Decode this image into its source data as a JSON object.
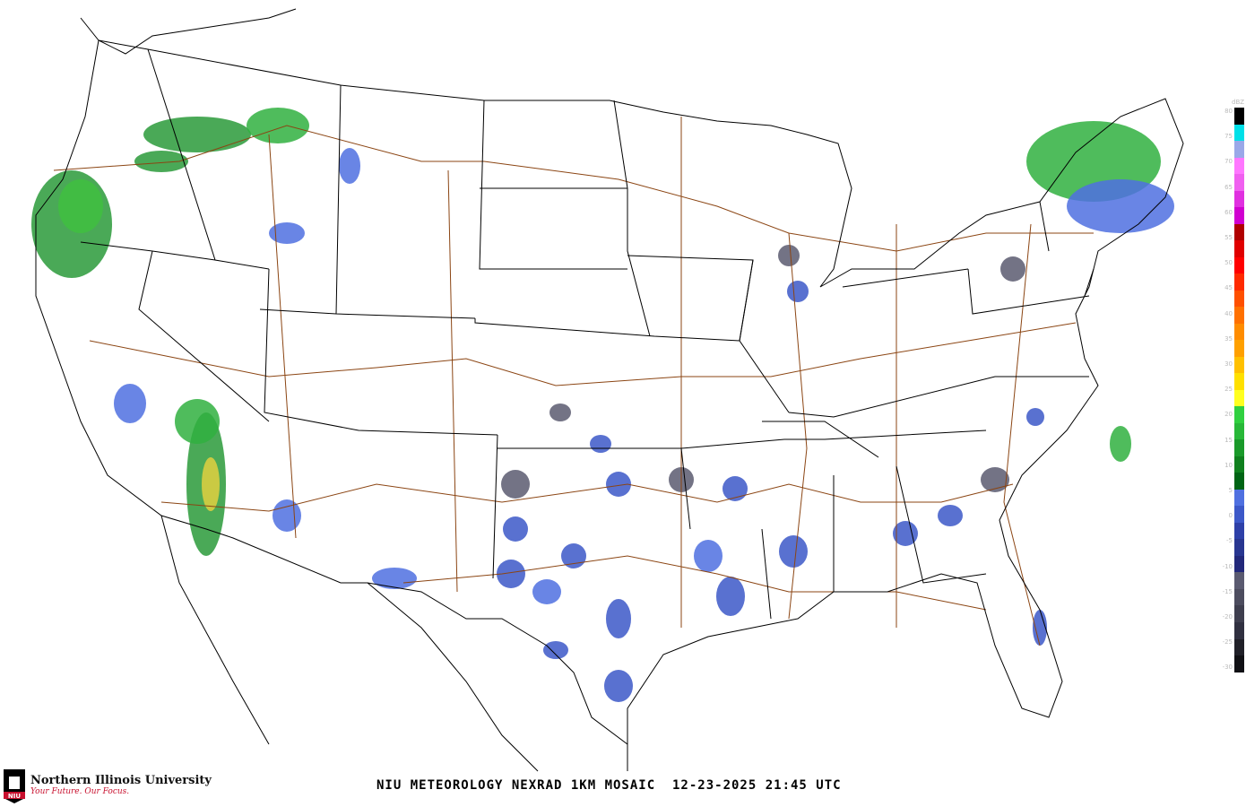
{
  "title": "NIU METEOROLOGY NEXRAD 1KM MOSAIC  12-23-2025 21:45 UTC",
  "logo": {
    "name": "Northern Illinois University",
    "tagline": "Your Future. Our Focus.",
    "mark": "NIU"
  },
  "legend": {
    "unit": "dBZ",
    "labels": [
      "80",
      "75",
      "70",
      "65",
      "60",
      "55",
      "50",
      "45",
      "40",
      "35",
      "30",
      "25",
      "20",
      "15",
      "10",
      "5",
      "0",
      "-5",
      "-10",
      "-15",
      "-20",
      "-25",
      "-30"
    ],
    "colors": [
      "#000000",
      "#00e0e8",
      "#9aa8e8",
      "#ff77ff",
      "#f060f0",
      "#e030e0",
      "#d000d0",
      "#b00000",
      "#e00000",
      "#ff0000",
      "#ff2a00",
      "#ff5000",
      "#ff7000",
      "#ff8c00",
      "#ffa000",
      "#ffc000",
      "#ffe000",
      "#ffff20",
      "#30d040",
      "#28b838",
      "#1a9a2a",
      "#10801e",
      "#006414",
      "#4f70e0",
      "#3c58c8",
      "#2e40a8",
      "#283690",
      "#22287a",
      "#5a5a70",
      "#4c4c5e",
      "#3e3e4e",
      "#303040",
      "#202028",
      "#101014"
    ]
  },
  "colors": {
    "border": "#000000",
    "highway": "#8b4513",
    "background": "#ffffff"
  }
}
